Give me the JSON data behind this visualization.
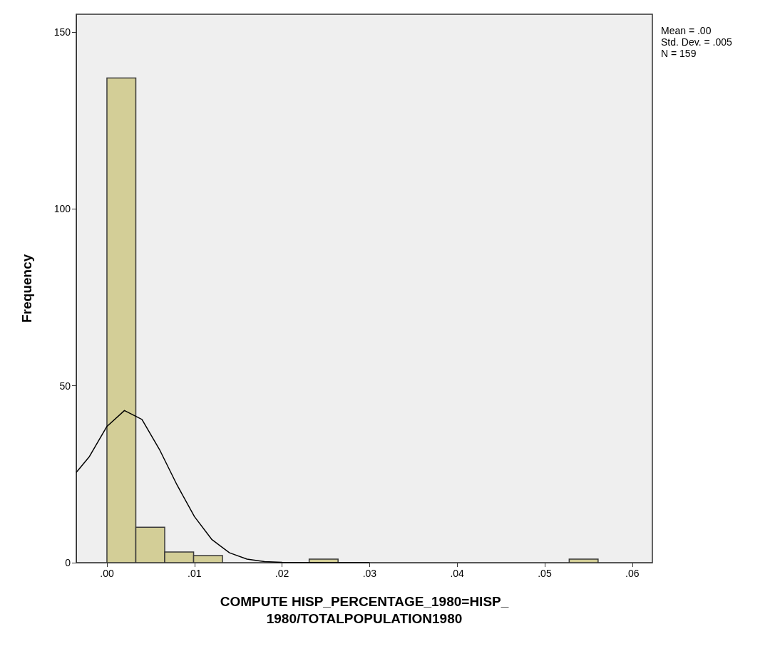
{
  "chart_data": {
    "type": "histogram",
    "xlabel": "COMPUTE HISP_PERCENTAGE_1980=HISP_\n1980/TOTALPOPULATION1980",
    "ylabel": "Frequency",
    "bins": [
      0,
      0.0033,
      0.0066,
      0.0099,
      0.0132,
      0.0165,
      0.0198,
      0.0231,
      0.0264,
      0.0297,
      0.033,
      0.0363,
      0.0396,
      0.0429,
      0.0462,
      0.0495,
      0.0528,
      0.0561
    ],
    "series": [
      {
        "color": "#d3ce97",
        "values": [
          137,
          10,
          3,
          2,
          0,
          0,
          0,
          1,
          0,
          0,
          0,
          0,
          0,
          0,
          0,
          0,
          1
        ]
      },
      {
        "type": "line",
        "color": "#000000",
        "x": [
          -0.0035,
          -0.002,
          0,
          0.002,
          0.004,
          0.006,
          0.008,
          0.01,
          0.012,
          0.014,
          0.016,
          0.018,
          0.02,
          0.025,
          0.03
        ],
        "values": [
          25.5,
          30,
          38.5,
          43,
          40.5,
          32,
          22,
          13,
          6.5,
          2.8,
          1,
          0.3,
          0.1,
          0,
          0
        ]
      }
    ],
    "marker": "none",
    "grid": false,
    "xlim": [
      -0.0035,
      0.0623
    ],
    "xticks": [
      {
        "value": 0,
        "label": ".00"
      },
      {
        "value": 0.01,
        "label": ".01"
      },
      {
        "value": 0.02,
        "label": ".02"
      },
      {
        "value": 0.03,
        "label": ".03"
      },
      {
        "value": 0.04,
        "label": ".04"
      },
      {
        "value": 0.05,
        "label": ".05"
      },
      {
        "value": 0.06,
        "label": ".06"
      }
    ],
    "ylim": [
      0,
      155
    ],
    "yticks": [
      0,
      50,
      100,
      150
    ],
    "annotations": [
      "Mean = .00",
      "Std. Dev. = .005",
      "N = 159"
    ]
  }
}
